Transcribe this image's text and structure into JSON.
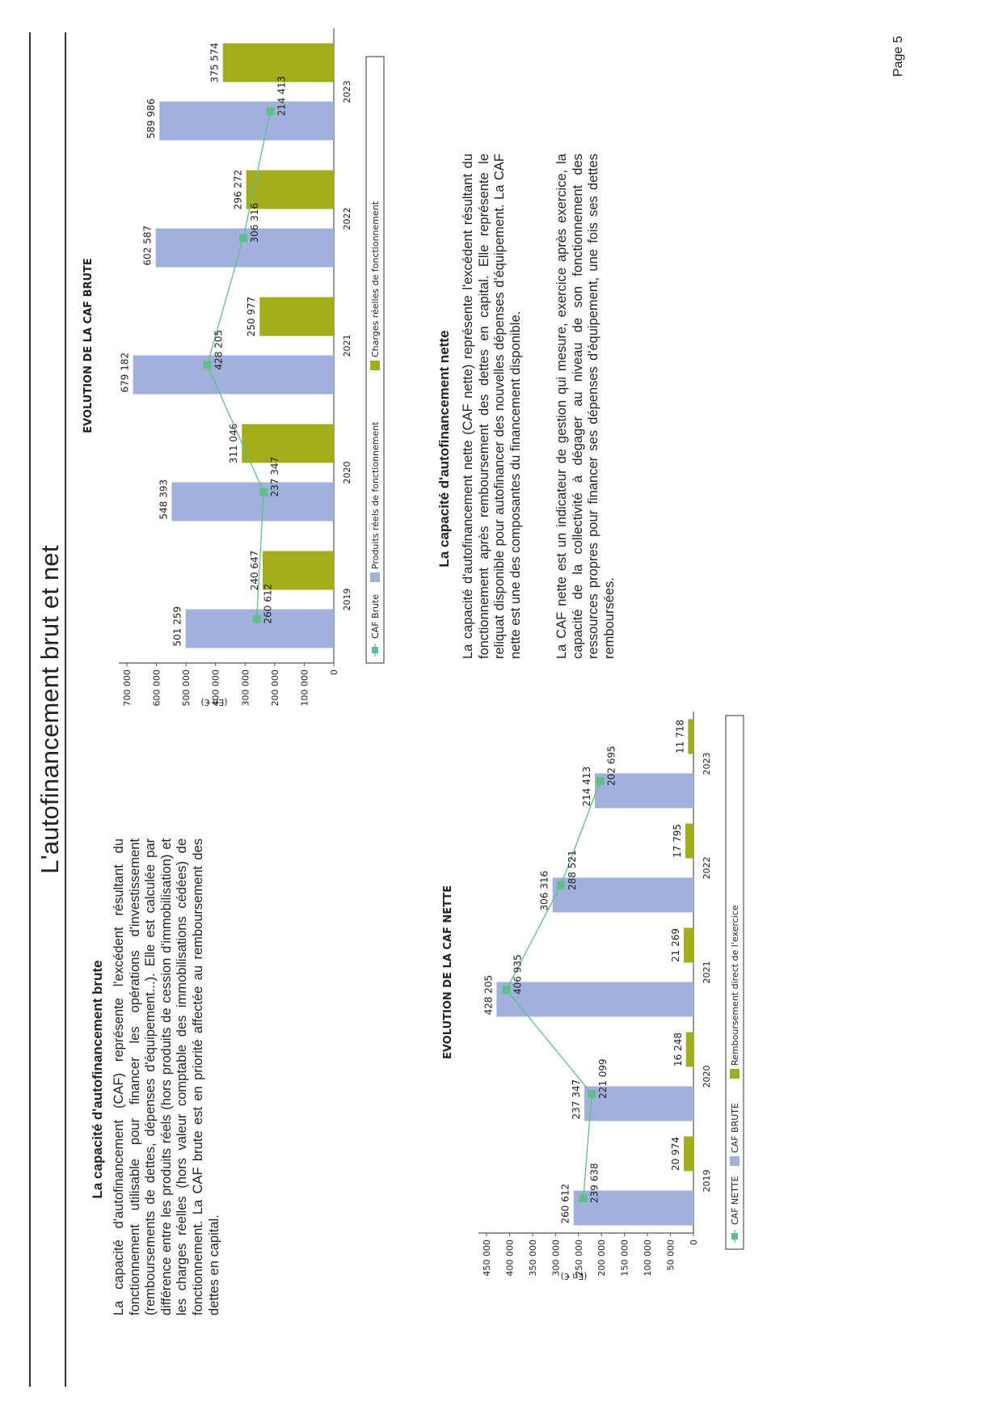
{
  "page": {
    "title": "L'autofinancement brut et net",
    "page_number": "Page 5"
  },
  "section_brute": {
    "heading": "La capacité d'autofinancement brute",
    "paragraph": "La capacité d'autofinancement (CAF) représente l'excédent résultant du fonctionnement utilisable pour financer les opérations d'investissement (remboursements de dettes, dépenses d'équipement...). Elle est calculée par différence entre les produits réels (hors produits de cession d'immobilisation) et les charges réelles (hors valeur comptable des immobilisations cédées) de fonctionnement. La CAF brute est en priorité affectée au remboursement des dettes en capital."
  },
  "section_nette": {
    "heading": "La capacité d'autofinancement nette",
    "paragraph1": "La capacité d'autofinancement nette (CAF nette) représente l'excédent résultant du fonctionnement après remboursement des dettes en capital. Elle représente le reliquat disponible pour autofinancer des nouvelles dépenses d'équipement. La CAF nette est une des composantes du financement disponible.",
    "paragraph2": "La CAF nette est un indicateur de gestion qui mesure, exercice après exercice, la capacité de la collectivité à dégager au niveau de son fonctionnement des ressources propres pour financer ses dépenses d'équipement, une fois ses dettes remboursées."
  },
  "colors": {
    "blue": "#a2b1dc",
    "olive": "#a3ad1c",
    "green": "#5fbe8a",
    "axis": "#555555"
  },
  "chart_data": [
    {
      "type": "bar",
      "title": "EVOLUTION DE LA CAF NETTE",
      "ylabel": "(En €)",
      "categories": [
        "2019",
        "2020",
        "2021",
        "2022",
        "2023"
      ],
      "ylim": [
        0,
        450000
      ],
      "yticks": [
        0,
        50000,
        100000,
        150000,
        200000,
        250000,
        300000,
        350000,
        400000,
        450000
      ],
      "ytick_labels": [
        "0",
        "50 000",
        "100 000",
        "150 000",
        "200 000",
        "250 000",
        "300 000",
        "350 000",
        "400 000",
        "450 000"
      ],
      "series": [
        {
          "name": "CAF BRUTE",
          "kind": "bar",
          "values": [
            260612,
            237347,
            428205,
            306316,
            214413
          ],
          "labels": [
            "260 612",
            "237 347",
            "428 205",
            "306 316",
            "214 413"
          ]
        },
        {
          "name": "Remboursement direct de l'exercice",
          "kind": "bar",
          "values": [
            20974,
            16248,
            21269,
            17795,
            11718
          ],
          "labels": [
            "20 974",
            "16 248",
            "21 269",
            "17 795",
            "11 718"
          ]
        },
        {
          "name": "CAF NETTE",
          "kind": "line",
          "values": [
            239638,
            221099,
            406935,
            288521,
            202695
          ],
          "labels": [
            "239 638",
            "221 099",
            "406 935",
            "288 521",
            "202 695"
          ]
        }
      ],
      "legend_position": "bottom"
    },
    {
      "type": "bar",
      "title": "EVOLUTION DE LA CAF BRUTE",
      "ylabel": "(En €)",
      "categories": [
        "2019",
        "2020",
        "2021",
        "2022",
        "2023"
      ],
      "ylim": [
        0,
        700000
      ],
      "yticks": [
        0,
        100000,
        200000,
        300000,
        400000,
        500000,
        600000,
        700000
      ],
      "ytick_labels": [
        "0",
        "100 000",
        "200 000",
        "300 000",
        "400 000",
        "500 000",
        "600 000",
        "700 000"
      ],
      "series": [
        {
          "name": "Produits réels de fonctionnement",
          "kind": "bar",
          "values": [
            501259,
            548393,
            679182,
            602587,
            589986
          ],
          "labels": [
            "501 259",
            "548 393",
            "679 182",
            "602 587",
            "589 986"
          ]
        },
        {
          "name": "Charges réelles de fonctionnement",
          "kind": "bar",
          "values": [
            240647,
            311046,
            250977,
            296272,
            375574
          ],
          "labels": [
            "240 647",
            "311 046",
            "250 977",
            "296 272",
            "375 574"
          ]
        },
        {
          "name": "CAF Brute",
          "kind": "line",
          "values": [
            260612,
            237347,
            428205,
            306316,
            214413
          ],
          "labels": [
            "260 612",
            "237 347",
            "428 205",
            "306 316",
            "214 413"
          ]
        }
      ],
      "legend_position": "bottom"
    }
  ]
}
